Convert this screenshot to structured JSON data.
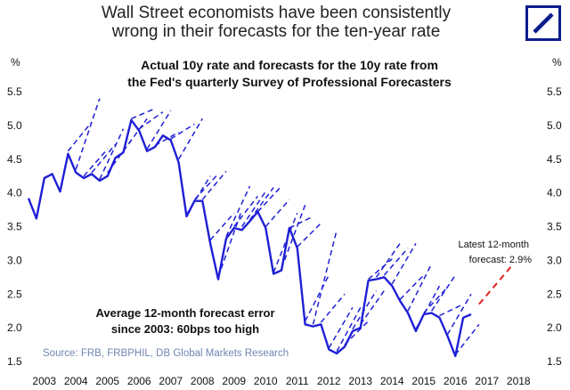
{
  "header": {
    "title_lines": [
      "Wall Street economists have been consistently",
      "wrong in their forecasts for the ten-year rate"
    ],
    "logo": "deutsche-bank-logo"
  },
  "colors": {
    "actual": "#1f1fd6",
    "forecast": "#1f1fd6",
    "latest": "#e02020",
    "source": "#6f86b3",
    "logo": "#0a1e8c"
  },
  "chart_data": {
    "type": "line",
    "title_lines": [
      "Actual 10y rate and forecasts for the 10y rate from",
      "the Fed's quarterly Survey of Professional Forecasters"
    ],
    "ylabel_left": "%",
    "ylabel_right": "%",
    "ylim": [
      1.5,
      5.5
    ],
    "yticks": [
      1.5,
      2.0,
      2.5,
      3.0,
      3.5,
      4.0,
      4.5,
      5.0,
      5.5
    ],
    "ytick_labels": [
      "1.5",
      "2.0",
      "2.5",
      "3.0",
      "3.5",
      "4.0",
      "4.5",
      "5.0",
      "5.5"
    ],
    "xlim": [
      2003,
      2019
    ],
    "xticks": [
      2003.5,
      2004.5,
      2005.5,
      2006.5,
      2007.5,
      2008.5,
      2009.5,
      2010.5,
      2011.5,
      2012.5,
      2013.5,
      2014.5,
      2015.5,
      2016.5,
      2017.5,
      2018.5
    ],
    "xtick_labels": [
      "2003",
      "2004",
      "2005",
      "2006",
      "2007",
      "2008",
      "2009",
      "2010",
      "2011",
      "2012",
      "2013",
      "2014",
      "2015",
      "2016",
      "2017",
      "2018"
    ],
    "series": [
      {
        "name": "Actual 10y rate",
        "style": "solid",
        "x": [
          2003.0,
          2003.25,
          2003.5,
          2003.75,
          2004.0,
          2004.25,
          2004.5,
          2004.75,
          2005.0,
          2005.25,
          2005.5,
          2005.75,
          2006.0,
          2006.25,
          2006.5,
          2006.75,
          2007.0,
          2007.25,
          2007.5,
          2007.75,
          2008.0,
          2008.25,
          2008.5,
          2008.75,
          2009.0,
          2009.25,
          2009.5,
          2009.75,
          2010.0,
          2010.25,
          2010.5,
          2010.75,
          2011.0,
          2011.25,
          2011.5,
          2011.75,
          2012.0,
          2012.25,
          2012.5,
          2012.75,
          2013.0,
          2013.25,
          2013.5,
          2013.75,
          2014.0,
          2014.25,
          2014.5,
          2014.75,
          2015.0,
          2015.25,
          2015.5,
          2015.75,
          2016.0,
          2016.25,
          2016.5,
          2016.75,
          2017.0
        ],
        "y": [
          3.92,
          3.62,
          4.22,
          4.28,
          4.02,
          4.58,
          4.3,
          4.22,
          4.28,
          4.18,
          4.25,
          4.52,
          4.6,
          5.08,
          4.92,
          4.62,
          4.68,
          4.85,
          4.78,
          4.45,
          3.65,
          3.88,
          3.88,
          3.25,
          2.72,
          3.32,
          3.48,
          3.45,
          3.58,
          3.72,
          3.48,
          2.8,
          2.85,
          3.48,
          3.18,
          2.05,
          2.02,
          2.05,
          1.68,
          1.62,
          1.72,
          1.95,
          2.0,
          2.7,
          2.72,
          2.75,
          2.62,
          2.4,
          2.22,
          1.95,
          2.2,
          2.22,
          2.15,
          1.88,
          1.58,
          2.15,
          2.2
        ]
      },
      {
        "name": "12-month forecasts",
        "style": "dashed",
        "segments": [
          {
            "x0": 2004.25,
            "y0": 4.62,
            "x1": 2005.0,
            "y1": 5.05
          },
          {
            "x0": 2004.5,
            "y0": 4.35,
            "x1": 2005.25,
            "y1": 5.4
          },
          {
            "x0": 2004.75,
            "y0": 4.25,
            "x1": 2005.5,
            "y1": 4.65
          },
          {
            "x0": 2005.0,
            "y0": 4.3,
            "x1": 2005.75,
            "y1": 4.72
          },
          {
            "x0": 2005.25,
            "y0": 4.2,
            "x1": 2006.0,
            "y1": 4.95
          },
          {
            "x0": 2005.5,
            "y0": 4.3,
            "x1": 2006.25,
            "y1": 4.78
          },
          {
            "x0": 2006.0,
            "y0": 4.62,
            "x1": 2006.75,
            "y1": 5.1
          },
          {
            "x0": 2006.25,
            "y0": 5.1,
            "x1": 2007.0,
            "y1": 5.25
          },
          {
            "x0": 2006.5,
            "y0": 4.95,
            "x1": 2007.25,
            "y1": 5.2
          },
          {
            "x0": 2006.75,
            "y0": 4.65,
            "x1": 2007.5,
            "y1": 5.22
          },
          {
            "x0": 2007.0,
            "y0": 4.7,
            "x1": 2007.75,
            "y1": 4.9
          },
          {
            "x0": 2007.5,
            "y0": 4.8,
            "x1": 2008.25,
            "y1": 5.02
          },
          {
            "x0": 2007.75,
            "y0": 4.5,
            "x1": 2008.5,
            "y1": 5.1
          },
          {
            "x0": 2008.0,
            "y0": 3.68,
            "x1": 2008.75,
            "y1": 4.25
          },
          {
            "x0": 2008.25,
            "y0": 3.9,
            "x1": 2009.0,
            "y1": 4.28
          },
          {
            "x0": 2008.5,
            "y0": 3.9,
            "x1": 2009.25,
            "y1": 4.32
          },
          {
            "x0": 2008.75,
            "y0": 3.3,
            "x1": 2009.5,
            "y1": 3.7
          },
          {
            "x0": 2009.0,
            "y0": 2.75,
            "x1": 2009.75,
            "y1": 3.75
          },
          {
            "x0": 2009.25,
            "y0": 3.35,
            "x1": 2010.0,
            "y1": 4.1
          },
          {
            "x0": 2009.5,
            "y0": 3.5,
            "x1": 2010.25,
            "y1": 3.95
          },
          {
            "x0": 2009.75,
            "y0": 3.5,
            "x1": 2010.5,
            "y1": 4.02
          },
          {
            "x0": 2010.0,
            "y0": 3.6,
            "x1": 2010.75,
            "y1": 4.08
          },
          {
            "x0": 2010.25,
            "y0": 3.72,
            "x1": 2011.0,
            "y1": 4.1
          },
          {
            "x0": 2010.5,
            "y0": 3.5,
            "x1": 2011.25,
            "y1": 3.9
          },
          {
            "x0": 2010.75,
            "y0": 2.82,
            "x1": 2011.5,
            "y1": 3.7
          },
          {
            "x0": 2011.0,
            "y0": 2.88,
            "x1": 2011.75,
            "y1": 3.82
          },
          {
            "x0": 2011.25,
            "y0": 3.48,
            "x1": 2012.0,
            "y1": 3.65
          },
          {
            "x0": 2011.5,
            "y0": 3.2,
            "x1": 2012.25,
            "y1": 3.55
          },
          {
            "x0": 2011.75,
            "y0": 2.1,
            "x1": 2012.5,
            "y1": 2.78
          },
          {
            "x0": 2012.0,
            "y0": 2.05,
            "x1": 2012.75,
            "y1": 3.45
          },
          {
            "x0": 2012.25,
            "y0": 2.08,
            "x1": 2013.0,
            "y1": 2.5
          },
          {
            "x0": 2012.5,
            "y0": 1.7,
            "x1": 2013.25,
            "y1": 2.3
          },
          {
            "x0": 2012.75,
            "y0": 1.65,
            "x1": 2013.5,
            "y1": 2.3
          },
          {
            "x0": 2013.0,
            "y0": 1.75,
            "x1": 2013.75,
            "y1": 2.1
          },
          {
            "x0": 2013.25,
            "y0": 1.98,
            "x1": 2014.0,
            "y1": 2.55
          },
          {
            "x0": 2013.5,
            "y0": 2.05,
            "x1": 2014.25,
            "y1": 2.55
          },
          {
            "x0": 2013.75,
            "y0": 2.72,
            "x1": 2014.5,
            "y1": 3.02
          },
          {
            "x0": 2014.0,
            "y0": 2.75,
            "x1": 2014.75,
            "y1": 3.25
          },
          {
            "x0": 2014.25,
            "y0": 2.78,
            "x1": 2015.0,
            "y1": 3.18
          },
          {
            "x0": 2014.5,
            "y0": 2.65,
            "x1": 2015.25,
            "y1": 3.25
          },
          {
            "x0": 2014.75,
            "y0": 2.42,
            "x1": 2015.5,
            "y1": 2.78
          },
          {
            "x0": 2015.0,
            "y0": 2.25,
            "x1": 2015.75,
            "y1": 2.95
          },
          {
            "x0": 2015.25,
            "y0": 1.98,
            "x1": 2016.0,
            "y1": 2.62
          },
          {
            "x0": 2015.5,
            "y0": 2.22,
            "x1": 2016.25,
            "y1": 2.6
          },
          {
            "x0": 2015.75,
            "y0": 2.25,
            "x1": 2016.5,
            "y1": 2.78
          },
          {
            "x0": 2016.0,
            "y0": 2.18,
            "x1": 2016.75,
            "y1": 2.35
          },
          {
            "x0": 2016.25,
            "y0": 1.9,
            "x1": 2017.0,
            "y1": 2.5
          },
          {
            "x0": 2016.5,
            "y0": 1.6,
            "x1": 2017.25,
            "y1": 2.05
          }
        ]
      },
      {
        "name": "Latest 12-month forecast",
        "style": "dashed",
        "x": [
          2017.25,
          2018.25
        ],
        "y": [
          2.35,
          2.9
        ]
      }
    ],
    "annotations": {
      "latest_label_lines": [
        "Latest 12-month",
        "forecast: 2.9%"
      ],
      "error_note_lines": [
        "Average 12-month forecast error",
        "since 2003: 60bps too high"
      ],
      "source": "Source: FRB, FRBPHIL, DB Global Markets Research"
    }
  }
}
